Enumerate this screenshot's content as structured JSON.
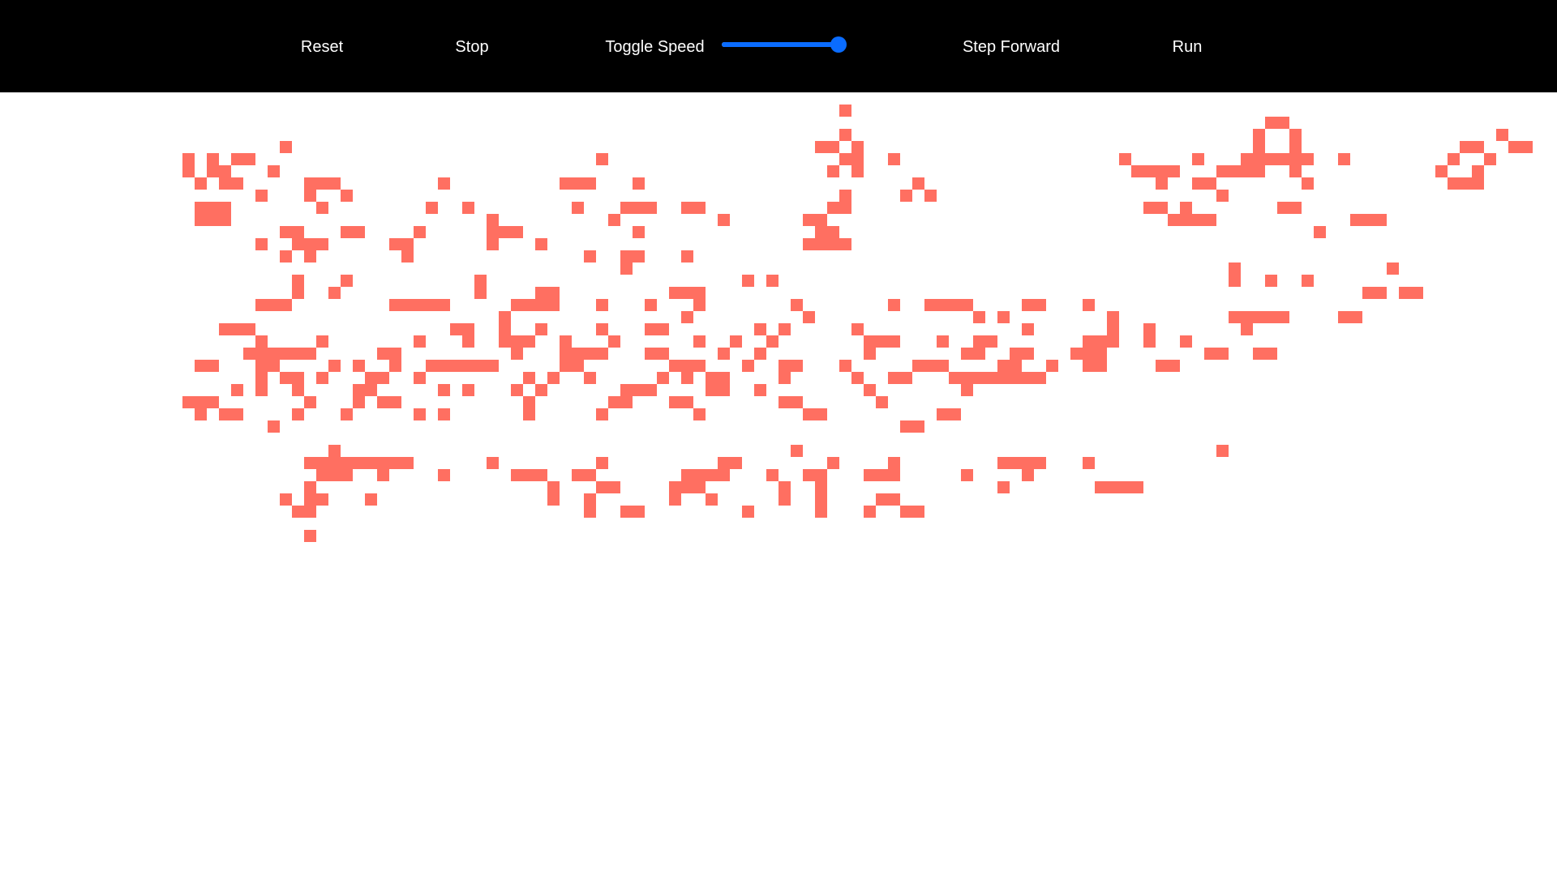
{
  "toolbar": {
    "reset_label": "Reset",
    "stop_label": "Stop",
    "toggle_speed_label": "Toggle Speed",
    "step_forward_label": "Step Forward",
    "run_label": "Run",
    "speed_value": 0.95
  },
  "colors": {
    "toolbar_background": "#000000",
    "toolbar_text": "#ffffff",
    "slider_accent": "#0a6cff",
    "live_cell": "#ff6f61",
    "board_background": "#ffffff"
  },
  "board": {
    "rows": [
      "",
      "                                                       o",
      "                                                                                          oo",
      "                                                       o                                 o  o                o",
      "         o                                           oo o                                o  o             oo  oo",
      " o o oo                            o                   oo  o                  o     o   oooooo  o        o  o",
      " o oo   o                                             o o                      oooo   oooo  o           o  o",
      "  o oo     ooo        o         ooo   o                      o                   o  oo       o           ooo",
      "       o   o  o                                        o    o o                       o",
      "  ooo       o        o  o        o   ooo  oo          oo                        oo o       oo",
      "  ooo                     o         o        o      oo                            oooo           ooo",
      "         oo   oo    o     ooo         o              oo                                       o",
      "       o  ooo     oo      o   o                     oooo",
      "         o o       o              o  oo   o",
      "                                     o                                                 o            o",
      "          o   o          o                     o o                                     o  o  o",
      "          o  o           o    oo         ooo                                                      oo oo",
      "       ooo        ooooo     oooo   o   o   o       o       o  oooo    oo   o",
      "                           o              o         o             o o        o         ooooo    oo",
      "    ooo                oo  o  o    o   oo       o o     o             o      o  o       o",
      "       o    o       o   o  ooo  o   o      o  o  o       ooo   o  oo       ooo  o  o",
      "      oooooo     oo         o   oooo   oo    o  o        o       oo  oo   ooo        oo  oo",
      "  oo   oo    o o  o  oooooo     oo       ooo   o  oo   o     ooo    oo  o  oo    oo",
      "       o oo o   oo  o        o o  o     o o oo    o     o  oo   oooooooo",
      "     o o  o    oo     o o   o o      ooo    oo  o        o       o",
      " ooo       o   o oo          o      oo   oo       oo      o",
      "  o oo    o   o     o o      o     o       o        oo         oo",
      "        o                                                   oo",
      "",
      "             o                                     o                                  o",
      "           ooooooooo      o        o         oo       o    o        oooo   o",
      "            ooo  o    o     ooo  oo       oooo   o  oo   ooo     o    o",
      "           o                   o   oo    ooo      o  o              o       oooo",
      "         o oo   o              o  o      o  o     o  o    oo",
      "          oo                      o  oo        o     o   o  oo",
      "",
      "           o"
    ]
  }
}
